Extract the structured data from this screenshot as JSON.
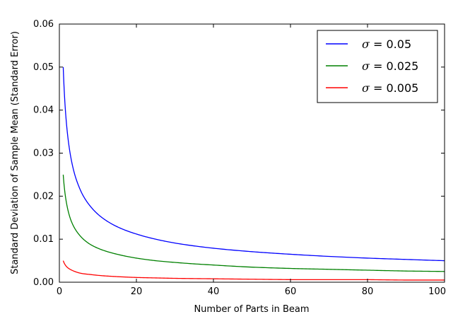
{
  "chart_data": {
    "type": "line",
    "xlabel": "Number of Parts in Beam",
    "ylabel": "Standard Deviation of Sample Mean (Standard Error)",
    "xlim": [
      0,
      100
    ],
    "ylim": [
      0,
      0.06
    ],
    "xticks": [
      "0",
      "20",
      "40",
      "60",
      "80",
      "100"
    ],
    "yticks": [
      "0.00",
      "0.01",
      "0.02",
      "0.03",
      "0.04",
      "0.05",
      "0.06"
    ],
    "grid": false,
    "legend_position": "top-right",
    "x": [
      1,
      2,
      3,
      4,
      5,
      6,
      8,
      10,
      15,
      20,
      25,
      30,
      40,
      50,
      60,
      70,
      80,
      90,
      100
    ],
    "series": [
      {
        "name": "σ = 0.05",
        "legend_symbol": "σ",
        "legend_value": "= 0.05",
        "color": "#0000ff",
        "values": [
          0.05,
          0.0354,
          0.0289,
          0.025,
          0.0224,
          0.0204,
          0.0177,
          0.0158,
          0.0129,
          0.0112,
          0.01,
          0.0091,
          0.0079,
          0.0071,
          0.0065,
          0.006,
          0.0056,
          0.0053,
          0.005
        ]
      },
      {
        "name": "σ = 0.025",
        "legend_symbol": "σ",
        "legend_value": "= 0.025",
        "color": "#008000",
        "values": [
          0.025,
          0.0177,
          0.0144,
          0.0125,
          0.0112,
          0.0102,
          0.0088,
          0.0079,
          0.0065,
          0.0056,
          0.005,
          0.0046,
          0.004,
          0.0035,
          0.0032,
          0.003,
          0.0028,
          0.0026,
          0.0025
        ]
      },
      {
        "name": "σ = 0.005",
        "legend_symbol": "σ",
        "legend_value": "= 0.005",
        "color": "#ff0000",
        "values": [
          0.005,
          0.0035,
          0.0029,
          0.0025,
          0.0022,
          0.002,
          0.0018,
          0.0016,
          0.0013,
          0.0011,
          0.001,
          0.0009,
          0.0008,
          0.0007,
          0.0006,
          0.0006,
          0.0006,
          0.0005,
          0.0005
        ]
      }
    ]
  }
}
